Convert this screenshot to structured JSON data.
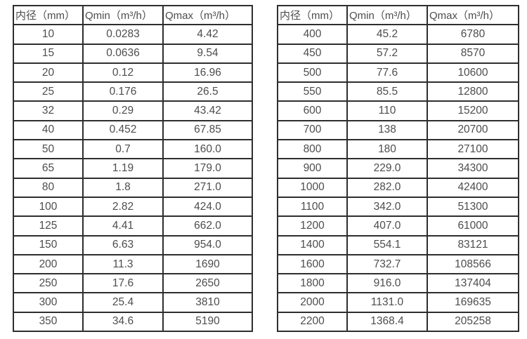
{
  "tables": [
    {
      "name": "small-diameter-flow-table",
      "headers": [
        "内径（mm）",
        "Qmin（m³/h）",
        "Qmax（m³/h）"
      ],
      "rows": [
        [
          "10",
          "0.0283",
          "4.42"
        ],
        [
          "15",
          "0.0636",
          "9.54"
        ],
        [
          "20",
          "0.12",
          "16.96"
        ],
        [
          "25",
          "0.176",
          "26.5"
        ],
        [
          "32",
          "0.29",
          "43.42"
        ],
        [
          "40",
          "0.452",
          "67.85"
        ],
        [
          "50",
          "0.7",
          "160.0"
        ],
        [
          "65",
          "1.19",
          "179.0"
        ],
        [
          "80",
          "1.8",
          "271.0"
        ],
        [
          "100",
          "2.82",
          "424.0"
        ],
        [
          "125",
          "4.41",
          "662.0"
        ],
        [
          "150",
          "6.63",
          "954.0"
        ],
        [
          "200",
          "11.3",
          "1690"
        ],
        [
          "250",
          "17.6",
          "2650"
        ],
        [
          "300",
          "25.4",
          "3810"
        ],
        [
          "350",
          "34.6",
          "5190"
        ]
      ]
    },
    {
      "name": "large-diameter-flow-table",
      "headers": [
        "内径（mm）",
        "Qmin（m³/h）",
        "Qmax（m³/h）"
      ],
      "rows": [
        [
          "400",
          "45.2",
          "6780"
        ],
        [
          "450",
          "57.2",
          "8570"
        ],
        [
          "500",
          "77.6",
          "10600"
        ],
        [
          "550",
          "85.5",
          "12800"
        ],
        [
          "600",
          "110",
          "15200"
        ],
        [
          "700",
          "138",
          "20700"
        ],
        [
          "800",
          "180",
          "27100"
        ],
        [
          "900",
          "229.0",
          "34300"
        ],
        [
          "1000",
          "282.0",
          "42400"
        ],
        [
          "1100",
          "342.0",
          "51300"
        ],
        [
          "1200",
          "407.0",
          "61000"
        ],
        [
          "1400",
          "554.1",
          "83121"
        ],
        [
          "1600",
          "732.7",
          "108566"
        ],
        [
          "1800",
          "916.0",
          "137404"
        ],
        [
          "2000",
          "1131.0",
          "169635"
        ],
        [
          "2200",
          "1368.4",
          "205258"
        ]
      ]
    }
  ],
  "colors": {
    "border": "#2e2e2e",
    "text": "#4d4d4d",
    "background": "#ffffff"
  }
}
